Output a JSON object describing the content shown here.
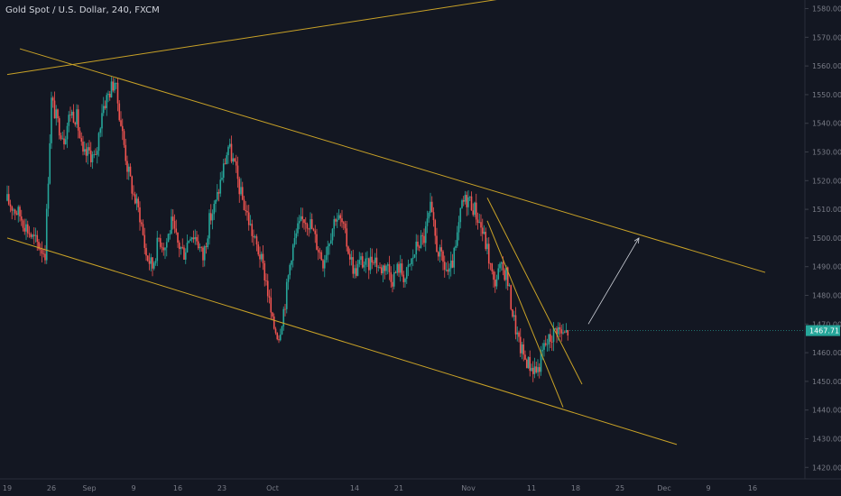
{
  "header": {
    "title": "Gold Spot / U.S. Dollar, 240, FXCM"
  },
  "colors": {
    "background": "#131722",
    "up": "#26a69a",
    "down": "#ef5350",
    "trendline": "#c9a227",
    "arrow": "#d1d4dc",
    "price_tag": "#26a69a",
    "axis_text": "#787b86"
  },
  "chart_data": {
    "type": "candlestick",
    "symbol": "Gold Spot / U.S. Dollar",
    "interval": "240",
    "source": "FXCM",
    "y_ticks": [
      1420,
      1430,
      1440,
      1450,
      1460,
      1470,
      1480,
      1490,
      1500,
      1510,
      1520,
      1530,
      1540,
      1550,
      1560,
      1570,
      1580
    ],
    "y_tick_labels": [
      "1420.00",
      "1430.00",
      "1440.00",
      "1450.00",
      "1460.00",
      "1470.00",
      "1480.00",
      "1490.00",
      "1500.00",
      "1510.00",
      "1520.00",
      "1530.00",
      "1540.00",
      "1550.00",
      "1560.00",
      "1570.00",
      "1580.00"
    ],
    "ylim": [
      1416,
      1583
    ],
    "x_ticks": [
      {
        "label": "19",
        "t": 0
      },
      {
        "label": "26",
        "t": 7
      },
      {
        "label": "Sep",
        "t": 13
      },
      {
        "label": "9",
        "t": 20
      },
      {
        "label": "16",
        "t": 27
      },
      {
        "label": "23",
        "t": 34
      },
      {
        "label": "Oct",
        "t": 42
      },
      {
        "label": "14",
        "t": 55
      },
      {
        "label": "21",
        "t": 62
      },
      {
        "label": "Nov",
        "t": 73
      },
      {
        "label": "11",
        "t": 83
      },
      {
        "label": "18",
        "t": 90
      },
      {
        "label": "25",
        "t": 97
      },
      {
        "label": "Dec",
        "t": 104
      },
      {
        "label": "9",
        "t": 111
      },
      {
        "label": "16",
        "t": 118
      }
    ],
    "last_price": 1467.71,
    "last_price_label": "1467.71",
    "price_path": [
      [
        0,
        1513
      ],
      [
        2,
        1508
      ],
      [
        4,
        1500
      ],
      [
        6,
        1495
      ],
      [
        7,
        1548
      ],
      [
        8,
        1540
      ],
      [
        9,
        1535
      ],
      [
        10,
        1544
      ],
      [
        11,
        1542
      ],
      [
        12,
        1528
      ],
      [
        13,
        1530
      ],
      [
        14,
        1527
      ],
      [
        15,
        1545
      ],
      [
        16,
        1550
      ],
      [
        17,
        1555
      ],
      [
        18,
        1540
      ],
      [
        19,
        1525
      ],
      [
        20,
        1515
      ],
      [
        21,
        1508
      ],
      [
        22,
        1494
      ],
      [
        23,
        1490
      ],
      [
        24,
        1500
      ],
      [
        25,
        1497
      ],
      [
        26,
        1505
      ],
      [
        27,
        1498
      ],
      [
        28,
        1495
      ],
      [
        29,
        1502
      ],
      [
        30,
        1500
      ],
      [
        31,
        1493
      ],
      [
        32,
        1506
      ],
      [
        33,
        1512
      ],
      [
        34,
        1522
      ],
      [
        35,
        1532
      ],
      [
        36,
        1525
      ],
      [
        37,
        1515
      ],
      [
        38,
        1508
      ],
      [
        39,
        1500
      ],
      [
        40,
        1494
      ],
      [
        41,
        1485
      ],
      [
        42,
        1470
      ],
      [
        43,
        1466
      ],
      [
        44,
        1478
      ],
      [
        45,
        1495
      ],
      [
        46,
        1503
      ],
      [
        47,
        1507
      ],
      [
        48,
        1505
      ],
      [
        49,
        1498
      ],
      [
        50,
        1492
      ],
      [
        51,
        1500
      ],
      [
        52,
        1508
      ],
      [
        53,
        1505
      ],
      [
        54,
        1496
      ],
      [
        55,
        1488
      ],
      [
        56,
        1492
      ],
      [
        57,
        1490
      ],
      [
        58,
        1494
      ],
      [
        59,
        1489
      ],
      [
        60,
        1491
      ],
      [
        61,
        1486
      ],
      [
        62,
        1490
      ],
      [
        63,
        1486
      ],
      [
        64,
        1492
      ],
      [
        65,
        1498
      ],
      [
        66,
        1500
      ],
      [
        67,
        1510
      ],
      [
        68,
        1497
      ],
      [
        69,
        1491
      ],
      [
        70,
        1487
      ],
      [
        71,
        1496
      ],
      [
        72,
        1512
      ],
      [
        73,
        1514
      ],
      [
        74,
        1510
      ],
      [
        75,
        1504
      ],
      [
        76,
        1496
      ],
      [
        77,
        1484
      ],
      [
        78,
        1489
      ],
      [
        79,
        1488
      ],
      [
        80,
        1474
      ],
      [
        81,
        1463
      ],
      [
        82,
        1458
      ],
      [
        83,
        1455
      ],
      [
        84,
        1454
      ],
      [
        85,
        1462
      ],
      [
        86,
        1465
      ],
      [
        87,
        1469
      ],
      [
        88,
        1466
      ],
      [
        89,
        1468
      ]
    ],
    "trendlines": [
      {
        "name": "upper-channel",
        "t1": 2,
        "p1": 1566,
        "t2": 120,
        "p2": 1488
      },
      {
        "name": "lower-channel",
        "t1": 0,
        "p1": 1500,
        "t2": 106,
        "p2": 1428
      },
      {
        "name": "long-up-line",
        "t1": 0,
        "p1": 1557,
        "t2": 80,
        "p2": 1584
      },
      {
        "name": "wedge-upper",
        "t1": 76,
        "p1": 1514,
        "t2": 91,
        "p2": 1449
      },
      {
        "name": "wedge-lower",
        "t1": 76,
        "p1": 1506,
        "t2": 88,
        "p2": 1441
      }
    ],
    "projection_arrow": {
      "t1": 92,
      "p1": 1470,
      "t2": 100,
      "p2": 1500
    }
  }
}
